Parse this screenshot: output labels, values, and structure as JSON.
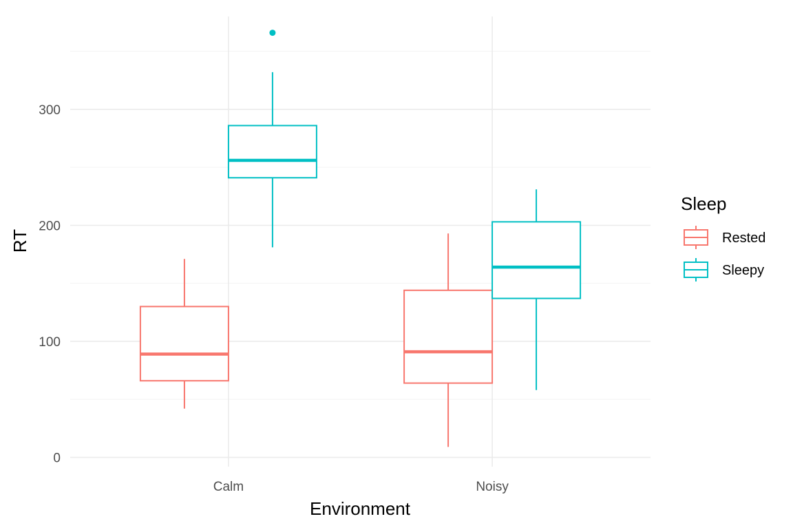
{
  "chart_data": {
    "type": "boxplot",
    "xlabel": "Environment",
    "ylabel": "RT",
    "categories": [
      "Calm",
      "Noisy"
    ],
    "ylim": [
      -8,
      380
    ],
    "y_ticks": [
      0,
      100,
      200,
      300
    ],
    "y_minor_ticks": [
      50,
      150,
      250,
      350
    ],
    "grid": true,
    "legend": {
      "title": "Sleep",
      "position": "right",
      "entries": [
        "Rested",
        "Sleepy"
      ]
    },
    "series": [
      {
        "name": "Rested",
        "color": "#f8766d",
        "boxes": [
          {
            "category": "Calm",
            "min": 42,
            "q1": 66,
            "median": 89,
            "q3": 130,
            "max": 171,
            "outliers": []
          },
          {
            "category": "Noisy",
            "min": 9,
            "q1": 64,
            "median": 91,
            "q3": 144,
            "max": 193,
            "outliers": []
          }
        ]
      },
      {
        "name": "Sleepy",
        "color": "#00bfc4",
        "boxes": [
          {
            "category": "Calm",
            "min": 181,
            "q1": 241,
            "median": 256,
            "q3": 286,
            "max": 332,
            "outliers": [
              366
            ]
          },
          {
            "category": "Noisy",
            "min": 58,
            "q1": 137,
            "median": 164,
            "q3": 203,
            "max": 231,
            "outliers": []
          }
        ]
      }
    ]
  }
}
